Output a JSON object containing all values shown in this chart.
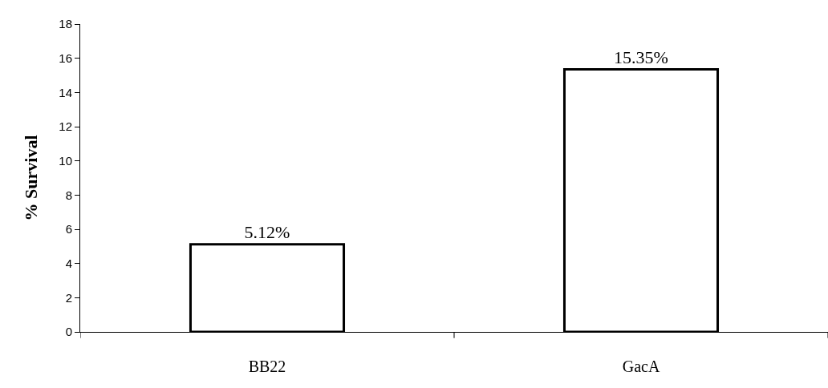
{
  "chart_data": {
    "type": "bar",
    "ylabel": "% Survival",
    "categories": [
      "BB22",
      "GacA"
    ],
    "values": [
      5.12,
      15.35
    ],
    "value_labels": [
      "5.12%",
      "15.35%"
    ],
    "color": "#ffffff",
    "ylim": [
      0,
      18
    ],
    "yticks": [
      0,
      2,
      4,
      6,
      8,
      10,
      12,
      14,
      16,
      18
    ],
    "grid": false,
    "legend": false
  }
}
